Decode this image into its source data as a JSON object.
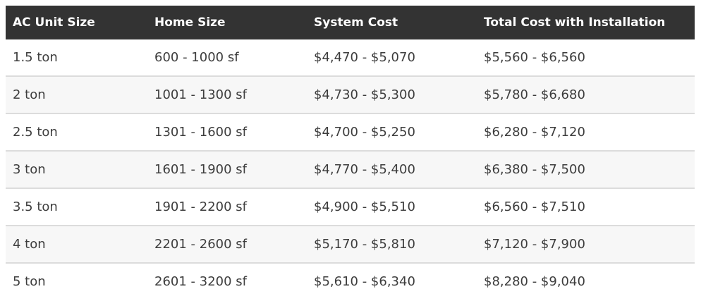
{
  "chart_data": {
    "type": "table",
    "title": "",
    "columns": [
      "AC Unit Size",
      "Home Size",
      "System Cost",
      "Total Cost with Installation"
    ],
    "rows": [
      [
        "1.5 ton",
        "600 - 1000 sf",
        "$4,470 - $5,070",
        "$5,560 - $6,560"
      ],
      [
        "2 ton",
        "1001 - 1300 sf",
        "$4,730 - $5,300",
        "$5,780 - $6,680"
      ],
      [
        "2.5 ton",
        "1301 - 1600 sf",
        "$4,700 - $5,250",
        "$6,280 - $7,120"
      ],
      [
        "3 ton",
        "1601 - 1900 sf",
        "$4,770 - $5,400",
        "$6,380 - $7,500"
      ],
      [
        "3.5 ton",
        "1901 - 2200 sf",
        "$4,900 - $5,510",
        "$6,560 - $7,510"
      ],
      [
        "4 ton",
        "2201 - 2600 sf",
        "$5,170 - $5,810",
        "$7,120 - $7,900"
      ],
      [
        "5 ton",
        "2601 - 3200 sf",
        "$5,610 - $6,340",
        "$8,280 - $9,040"
      ]
    ],
    "layout": {
      "header_position": "top",
      "striped_rows": true,
      "stripe_pattern": "even-rows-shaded"
    }
  },
  "colors": {
    "header_background": "#333333",
    "header_text": "#ffffff",
    "body_text": "#3d3d3d",
    "row_stripe": "#f7f7f7",
    "row_border": "#dcdcdc",
    "page_background": "#ffffff"
  }
}
